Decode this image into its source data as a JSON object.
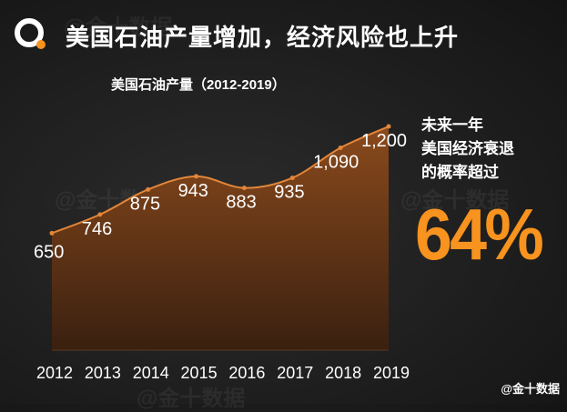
{
  "headline": "美国石油产量增加，经济风险也上升",
  "side_note": {
    "lines": [
      "未来一年",
      "美国经济衰退",
      "的概率超过"
    ],
    "value": "64%"
  },
  "watermarks": [
    "@金十数据",
    "@金十数据",
    "@金十数据",
    "@金十数据"
  ],
  "credit": "@金十数据",
  "colors": {
    "accent": "#f7931e",
    "area_top": "#8a4a1c",
    "area_bottom": "#3a2010",
    "line": "#e2863a",
    "background": "#1e1e1e"
  },
  "chart_data": {
    "type": "area",
    "title": "美国石油产量（2012-2019）",
    "categories": [
      "2012",
      "2013",
      "2014",
      "2015",
      "2016",
      "2017",
      "2018",
      "2019"
    ],
    "values": [
      650,
      746,
      875,
      943,
      883,
      935,
      1090,
      1200
    ],
    "value_labels": [
      "650",
      "746",
      "875",
      "943",
      "883",
      "935",
      "1,090",
      "1,200"
    ],
    "grid": false,
    "legend": "none"
  }
}
